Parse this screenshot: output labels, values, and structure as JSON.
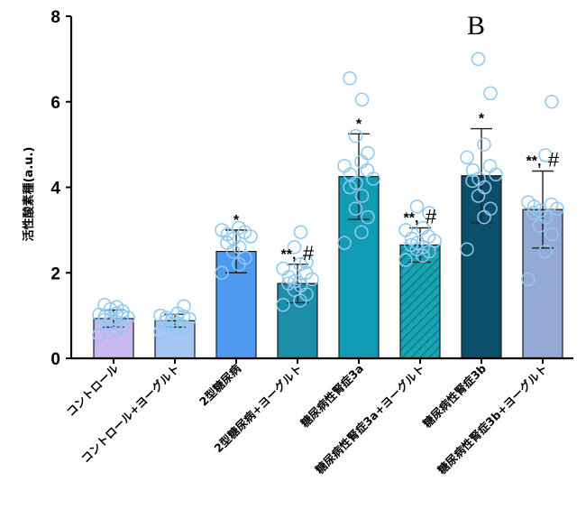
{
  "chart_data": {
    "type": "bar",
    "panel_label": "B",
    "title": "",
    "xlabel": "",
    "ylabel": "活性酸素種(a.u.)",
    "ylim": [
      0,
      8
    ],
    "yticks": [
      0,
      2,
      4,
      6,
      8
    ],
    "grid": false,
    "legend": "none",
    "categories": [
      "コントロール",
      "コントロール+ヨーグルト",
      "2型糖尿病",
      "2型糖尿病+ヨーグルト",
      "糖尿病性腎症3a",
      "糖尿病性腎症3a+ヨーグルト",
      "糖尿病性腎症3b",
      "糖尿病性腎症3b+ヨーグルト"
    ],
    "values": [
      0.93,
      0.88,
      2.5,
      1.75,
      4.25,
      2.65,
      4.27,
      3.48
    ],
    "errors": [
      0.2,
      0.15,
      0.5,
      0.45,
      1.0,
      0.4,
      1.1,
      0.9
    ],
    "significance": [
      {
        "stars": "",
        "hash": ""
      },
      {
        "stars": "",
        "hash": ""
      },
      {
        "stars": "*",
        "hash": ""
      },
      {
        "stars": "**",
        "hash": "#"
      },
      {
        "stars": "*",
        "hash": ""
      },
      {
        "stars": "**",
        "hash": "#"
      },
      {
        "stars": "*",
        "hash": ""
      },
      {
        "stars": "**",
        "hash": "#"
      }
    ],
    "points": [
      [
        0.55,
        0.68,
        0.75,
        0.82,
        0.85,
        0.9,
        0.92,
        0.95,
        0.98,
        1.0,
        1.02,
        1.05,
        1.1,
        1.15,
        1.2,
        1.25
      ],
      [
        0.62,
        0.7,
        0.75,
        0.8,
        0.82,
        0.86,
        0.9,
        0.92,
        0.95,
        0.98,
        1.0,
        1.05,
        1.22
      ],
      [
        2.0,
        2.2,
        2.35,
        2.5,
        2.6,
        2.7,
        2.8,
        2.85,
        2.9,
        2.95,
        3.0,
        3.05
      ],
      [
        1.25,
        1.35,
        1.5,
        1.6,
        1.7,
        1.75,
        1.8,
        1.85,
        1.9,
        2.0,
        2.1,
        2.2,
        2.25,
        2.6,
        2.95
      ],
      [
        2.7,
        2.95,
        3.3,
        3.5,
        3.8,
        4.0,
        4.1,
        4.2,
        4.3,
        4.4,
        4.5,
        4.6,
        4.8,
        5.2,
        6.05,
        6.55
      ],
      [
        2.3,
        2.4,
        2.5,
        2.55,
        2.6,
        2.65,
        2.7,
        2.75,
        2.8,
        2.85,
        3.0,
        3.05,
        3.4,
        3.55
      ],
      [
        2.55,
        3.3,
        3.5,
        3.8,
        4.0,
        4.15,
        4.2,
        4.3,
        4.4,
        4.5,
        4.7,
        5.0,
        6.2,
        7.0
      ],
      [
        1.85,
        2.5,
        2.9,
        3.1,
        3.3,
        3.4,
        3.45,
        3.5,
        3.55,
        3.6,
        3.65,
        4.75,
        6.0
      ]
    ],
    "bar_colors": [
      "#c9b8f0",
      "#a5c6f2",
      "#4d9af0",
      "#1c8fa6",
      "#139ab4",
      "#17a3b2",
      "#0b4f6a",
      "#94a9d4"
    ],
    "hatched": [
      false,
      false,
      false,
      false,
      false,
      true,
      false,
      false
    ],
    "point_color": "#8fc8f0"
  }
}
